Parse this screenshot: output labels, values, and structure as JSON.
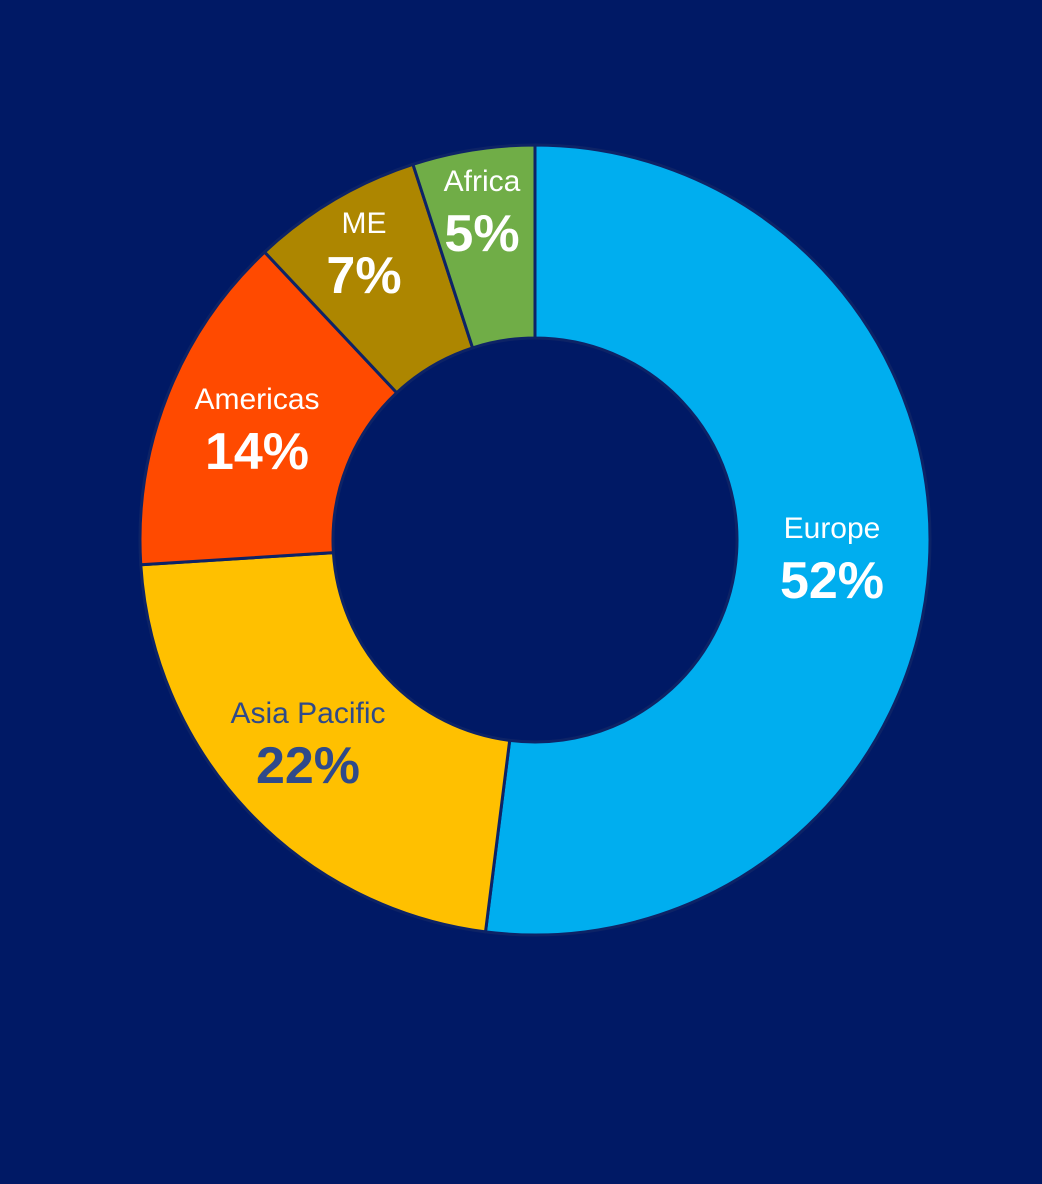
{
  "chart_data": {
    "type": "pie",
    "variant": "donut",
    "start": "12 o'clock",
    "direction": "clockwise",
    "background": "#001965",
    "separator_color": "#0d2366",
    "slices": [
      {
        "label": "Europe",
        "value": 52,
        "value_label": "52%",
        "color": "#00AEEF",
        "text_color": "#FFFFFF"
      },
      {
        "label": "Asia Pacific",
        "value": 22,
        "value_label": "22%",
        "color": "#FFC000",
        "text_color": "#2F4A8A"
      },
      {
        "label": "Americas",
        "value": 14,
        "value_label": "14%",
        "color": "#FF4A00",
        "text_color": "#FFFFFF"
      },
      {
        "label": "ME",
        "value": 7,
        "value_label": "7%",
        "color": "#AD8600",
        "text_color": "#FFFFFF"
      },
      {
        "label": "Africa",
        "value": 5,
        "value_label": "5%",
        "color": "#70AD47",
        "text_color": "#FFFFFF"
      }
    ]
  }
}
